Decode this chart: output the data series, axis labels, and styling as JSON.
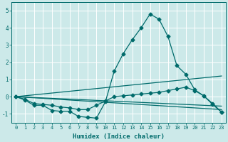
{
  "xlabel": "Humidex (Indice chaleur)",
  "ylabel": "",
  "bg_color": "#cce9e9",
  "grid_color": "#ffffff",
  "line_color": "#006b6b",
  "xlim": [
    -0.5,
    23.5
  ],
  "ylim": [
    -1.5,
    5.5
  ],
  "xticks": [
    0,
    1,
    2,
    3,
    4,
    5,
    6,
    7,
    8,
    9,
    10,
    11,
    12,
    13,
    14,
    15,
    16,
    17,
    18,
    19,
    20,
    21,
    22,
    23
  ],
  "yticks": [
    -1,
    0,
    1,
    2,
    3,
    4,
    5
  ],
  "line1_x": [
    0,
    1,
    2,
    3,
    4,
    5,
    6,
    7,
    8,
    9,
    10,
    11,
    12,
    13,
    14,
    15,
    16,
    17,
    18,
    19,
    20,
    21,
    22,
    23
  ],
  "line1_y": [
    0,
    -0.2,
    -0.5,
    -0.5,
    -0.8,
    -0.85,
    -0.85,
    -1.15,
    -1.2,
    -1.25,
    -0.3,
    1.5,
    2.5,
    3.3,
    4.0,
    4.8,
    4.5,
    3.5,
    1.8,
    1.3,
    0.4,
    0.05,
    -0.45,
    -0.9
  ],
  "line2_x": [
    0,
    1,
    2,
    3,
    4,
    5,
    6,
    7,
    8,
    9,
    10,
    11,
    12,
    13,
    14,
    15,
    16,
    17,
    18,
    19,
    20,
    21,
    22,
    23
  ],
  "line2_y": [
    0,
    -0.15,
    -0.4,
    -0.45,
    -0.5,
    -0.6,
    -0.65,
    -0.75,
    -0.75,
    -0.5,
    -0.25,
    0.0,
    0.05,
    0.1,
    0.15,
    0.2,
    0.25,
    0.35,
    0.45,
    0.55,
    0.35,
    0.05,
    -0.4,
    -0.9
  ],
  "line3_x": [
    0,
    23
  ],
  "line3_y": [
    0,
    -0.75
  ],
  "line4_x": [
    0,
    23
  ],
  "line4_y": [
    0,
    -0.55
  ],
  "line5_x": [
    0,
    23
  ],
  "line5_y": [
    0,
    1.2
  ]
}
